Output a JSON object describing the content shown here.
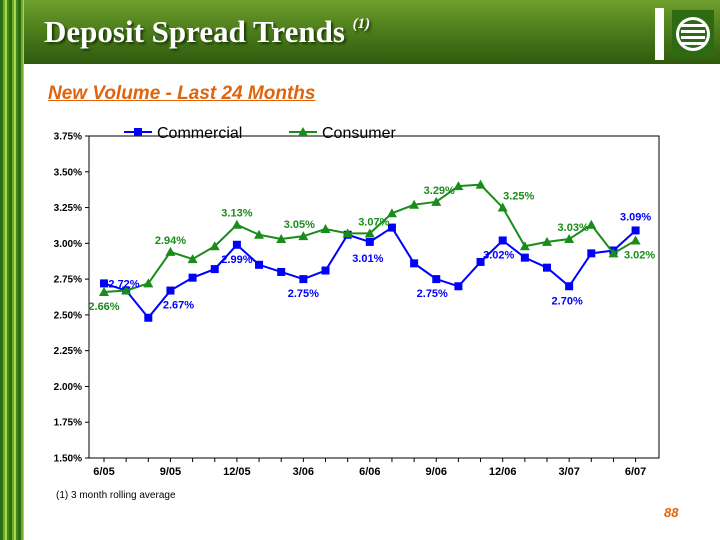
{
  "header": {
    "title": "Deposit Spread Trends",
    "title_sup": "(1)"
  },
  "subtitle": "New Volume - Last 24 Months",
  "footnote": "(1)  3 month rolling average",
  "page_number": "88",
  "colors": {
    "commercial": "#0000ff",
    "consumer": "#1a8c1a",
    "header_green": "#4e7f1c",
    "accent_orange": "#e0640c"
  },
  "chart_data": {
    "type": "line",
    "x_labels": [
      "6/05",
      "7/05",
      "8/05",
      "9/05",
      "10/05",
      "11/05",
      "12/05",
      "1/06",
      "2/06",
      "3/06",
      "4/06",
      "5/06",
      "6/06",
      "7/06",
      "8/06",
      "9/06",
      "10/06",
      "11/06",
      "12/06",
      "1/07",
      "2/07",
      "3/07",
      "4/07",
      "5/07",
      "6/07"
    ],
    "tick_labels": [
      "6/05",
      "9/05",
      "12/05",
      "3/06",
      "6/06",
      "9/06",
      "12/06",
      "3/07",
      "6/07"
    ],
    "y_ticks": [
      "1.50%",
      "1.75%",
      "2.00%",
      "2.25%",
      "2.50%",
      "2.75%",
      "3.00%",
      "3.25%",
      "3.50%",
      "3.75%"
    ],
    "ylim": [
      1.5,
      3.75
    ],
    "legend_position": "top",
    "series": [
      {
        "name": "Commercial",
        "marker": "square",
        "values": [
          2.72,
          2.67,
          2.48,
          2.67,
          2.76,
          2.82,
          2.99,
          2.85,
          2.8,
          2.75,
          2.81,
          3.06,
          3.01,
          3.11,
          2.86,
          2.75,
          2.7,
          2.87,
          3.02,
          2.9,
          2.83,
          2.7,
          2.93,
          2.95,
          3.09
        ]
      },
      {
        "name": "Consumer",
        "marker": "triangle",
        "values": [
          2.66,
          2.67,
          2.72,
          2.94,
          2.89,
          2.98,
          3.13,
          3.06,
          3.03,
          3.05,
          3.1,
          3.07,
          3.07,
          3.21,
          3.27,
          3.29,
          3.4,
          3.41,
          3.25,
          2.98,
          3.01,
          3.03,
          3.13,
          2.93,
          3.02
        ]
      }
    ],
    "annotations": [
      {
        "text": "2.72%",
        "series": "Commercial",
        "index": 0
      },
      {
        "text": "2.67%",
        "series": "Commercial",
        "index": 3
      },
      {
        "text": "2.99%",
        "series": "Commercial",
        "index": 6
      },
      {
        "text": "2.75%",
        "series": "Commercial",
        "index": 9
      },
      {
        "text": "3.01%",
        "series": "Commercial",
        "index": 12
      },
      {
        "text": "2.75%",
        "series": "Commercial",
        "index": 15
      },
      {
        "text": "3.02%",
        "series": "Commercial",
        "index": 18
      },
      {
        "text": "2.70%",
        "series": "Commercial",
        "index": 21
      },
      {
        "text": "3.09%",
        "series": "Commercial",
        "index": 24
      },
      {
        "text": "2.66%",
        "series": "Consumer",
        "index": 0
      },
      {
        "text": "2.94%",
        "series": "Consumer",
        "index": 3
      },
      {
        "text": "3.13%",
        "series": "Consumer",
        "index": 6
      },
      {
        "text": "3.05%",
        "series": "Consumer",
        "index": 9
      },
      {
        "text": "3.07%",
        "series": "Consumer",
        "index": 12
      },
      {
        "text": "3.29%",
        "series": "Consumer",
        "index": 15
      },
      {
        "text": "3.25%",
        "series": "Consumer",
        "index": 18
      },
      {
        "text": "3.03%",
        "series": "Consumer",
        "index": 21
      },
      {
        "text": "3.02%",
        "series": "Consumer",
        "index": 24
      }
    ]
  }
}
